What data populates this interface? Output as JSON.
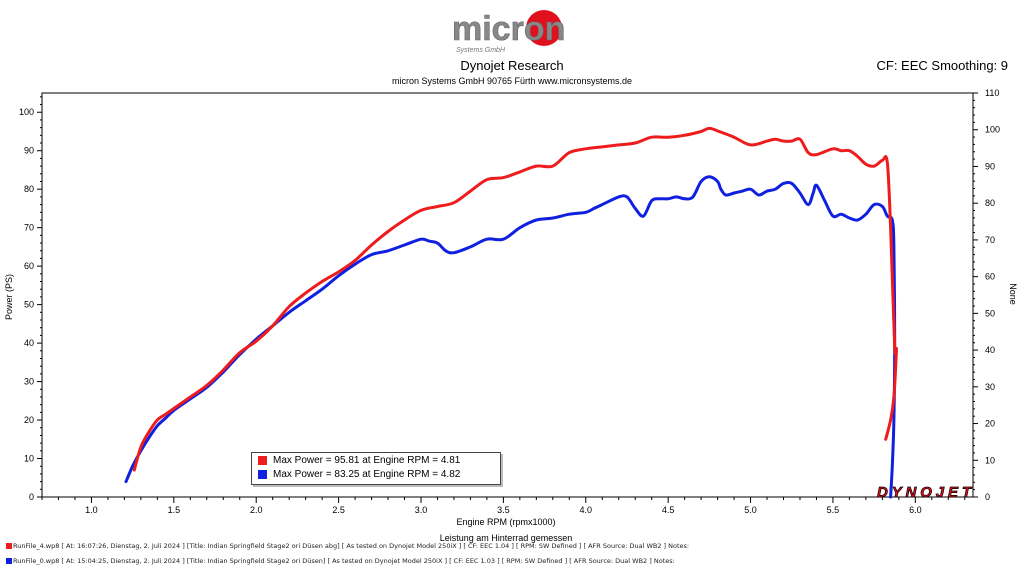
{
  "header": {
    "logo_text": "micron",
    "logo_subtext": "Systems GmbH",
    "title": "Dynojet Research",
    "subtitle": "micron Systems GmbH  90765 Fürth www.micronsystems.de",
    "cf_label": "CF: EEC Smoothing: 9"
  },
  "brand": {
    "dynojet": "DYNOJET"
  },
  "colors": {
    "red": "#ee1c1c",
    "blue": "#1020e0",
    "brand_red": "#e0101c"
  },
  "chart_data": {
    "type": "line",
    "xlabel": "Engine RPM (rpmx1000)",
    "xlabel2": "Leistung am Hinterrad gemessen",
    "ylabel": "Power (PS)",
    "y2label": "None",
    "xlim": [
      0.7,
      6.35
    ],
    "ylim": [
      0,
      105
    ],
    "y2lim": [
      0,
      110
    ],
    "xticks": [
      "1.0",
      "1.5",
      "2.0",
      "2.5",
      "3.0",
      "3.5",
      "4.0",
      "4.5",
      "5.0",
      "5.5",
      "6.0"
    ],
    "yticks": [
      "0",
      "10",
      "20",
      "30",
      "40",
      "50",
      "60",
      "70",
      "80",
      "90",
      "100"
    ],
    "y2ticks": [
      "0",
      "10",
      "20",
      "30",
      "40",
      "50",
      "60",
      "70",
      "80",
      "90",
      "100",
      "110"
    ],
    "legend_placement": "bottom-left",
    "series": [
      {
        "color": "#ee1c1c",
        "legend": "Max Power = 95.81 at Engine RPM = 4.81",
        "x": [
          1.26,
          1.3,
          1.35,
          1.4,
          1.45,
          1.5,
          1.6,
          1.7,
          1.8,
          1.9,
          2.0,
          2.1,
          2.2,
          2.3,
          2.4,
          2.5,
          2.6,
          2.7,
          2.8,
          2.9,
          3.0,
          3.1,
          3.2,
          3.3,
          3.4,
          3.5,
          3.6,
          3.7,
          3.8,
          3.9,
          4.0,
          4.1,
          4.2,
          4.3,
          4.4,
          4.5,
          4.6,
          4.7,
          4.75,
          4.81,
          4.9,
          5.0,
          5.1,
          5.15,
          5.2,
          5.25,
          5.3,
          5.35,
          5.4,
          5.5,
          5.55,
          5.6,
          5.65,
          5.7,
          5.75,
          5.8,
          5.83,
          5.85,
          5.86,
          5.87,
          5.875,
          5.88,
          5.885,
          5.87,
          5.85,
          5.82
        ],
        "values": [
          7,
          13,
          17,
          20,
          21.5,
          23,
          26,
          29,
          33,
          37.5,
          40.5,
          44.5,
          49.5,
          53,
          56,
          58.5,
          61.5,
          65.5,
          69,
          72,
          74.5,
          75.5,
          76.5,
          79.5,
          82.5,
          83,
          84.5,
          86,
          86,
          89.5,
          90.5,
          91,
          91.5,
          92,
          93.5,
          93.5,
          94,
          95,
          95.8,
          95,
          93.5,
          91.5,
          92.5,
          93,
          92.5,
          92.5,
          93,
          89.5,
          89,
          90.5,
          90,
          90,
          88.5,
          86.5,
          86,
          87.5,
          87,
          70,
          57,
          45,
          39,
          37,
          38,
          26,
          20,
          15
        ]
      },
      {
        "color": "#1020e0",
        "legend": "Max Power = 83.25 at Engine RPM = 4.82",
        "x": [
          1.21,
          1.25,
          1.3,
          1.35,
          1.4,
          1.45,
          1.5,
          1.6,
          1.7,
          1.8,
          1.9,
          2.0,
          2.1,
          2.2,
          2.3,
          2.4,
          2.5,
          2.6,
          2.7,
          2.8,
          2.9,
          3.0,
          3.05,
          3.1,
          3.15,
          3.2,
          3.3,
          3.4,
          3.5,
          3.6,
          3.7,
          3.8,
          3.9,
          4.0,
          4.05,
          4.1,
          4.2,
          4.25,
          4.3,
          4.35,
          4.4,
          4.45,
          4.5,
          4.55,
          4.6,
          4.65,
          4.7,
          4.75,
          4.8,
          4.82,
          4.85,
          4.9,
          4.95,
          5.0,
          5.05,
          5.1,
          5.15,
          5.2,
          5.25,
          5.3,
          5.35,
          5.38,
          5.4,
          5.45,
          5.5,
          5.55,
          5.6,
          5.65,
          5.7,
          5.75,
          5.8,
          5.83,
          5.86,
          5.87,
          5.875,
          5.87,
          5.86,
          5.85
        ],
        "values": [
          4,
          8,
          12,
          15.5,
          18.5,
          20.5,
          22.5,
          25.5,
          28.5,
          32.5,
          37,
          41,
          44.5,
          48,
          51,
          54,
          57.5,
          60.5,
          63,
          64,
          65.5,
          67,
          66.5,
          66,
          64,
          63.5,
          65,
          67,
          67,
          70,
          72,
          72.5,
          73.5,
          74,
          75,
          76,
          78,
          78,
          75,
          73,
          77,
          77.5,
          77.5,
          78,
          77.5,
          78,
          82,
          83.25,
          82,
          80,
          78.5,
          79,
          79.5,
          80,
          78.5,
          79.5,
          80,
          81.5,
          81.5,
          79,
          76,
          79,
          81,
          77,
          73,
          73.5,
          72.5,
          72,
          73.5,
          76,
          75.5,
          73,
          72,
          65,
          40,
          20,
          8,
          0
        ]
      }
    ]
  },
  "footer": [
    "RunFile_4.wp8  [ At:  16:07:26, Dienstag, 2. Juli 2024 ] [Title: Indian Springfield Stage2 ori Düsen abg]  [ As tested on Dynojet Model 250iX ] [ CF: EEC 1.04 ] [ RPM: SW Defined ] [ AFR Source: Dual WB2 ] Notes:",
    "RunFile_0.wp8  [ At:  15:04:25, Dienstag, 2. Juli 2024 ] [Title: Indian Springfield Stage2 ori Düsen]  [ As tested on Dynojet Model 250iX ] [ CF: EEC 1.03 ] [ RPM: SW Defined ] [ AFR Source: Dual WB2 ] Notes:"
  ]
}
